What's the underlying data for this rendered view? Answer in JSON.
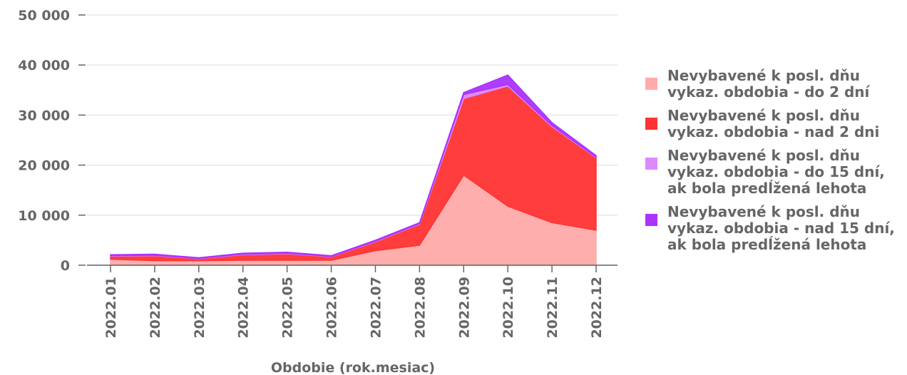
{
  "chart_data": {
    "type": "stacked-area",
    "x_label": "Obdobie (rok.mesiac)",
    "categories": [
      "2022.01",
      "2022.02",
      "2022.03",
      "2022.04",
      "2022.05",
      "2022.06",
      "2022.07",
      "2022.08",
      "2022.09",
      "2022.10",
      "2022.11",
      "2022.12"
    ],
    "series": [
      {
        "name": "Nevybavené k posl. dňu vykaz. obdobia - do 2 dní",
        "color": "#ffaaaa",
        "values": [
          1200,
          900,
          900,
          1000,
          1000,
          1000,
          2900,
          4000,
          18000,
          11800,
          8500,
          7000
        ]
      },
      {
        "name": "Nevybavené k posl. dňu vykaz. obdobia - nad 2 dni",
        "color": "#ff3333",
        "values": [
          600,
          1000,
          400,
          1100,
          1300,
          700,
          1800,
          4200,
          15300,
          24000,
          19200,
          14500
        ]
      },
      {
        "name": "Nevybavené k posl. dňu vykaz. obdobia - do 15 dní, ak bola predĺžená lehota",
        "color": "#dd88ff",
        "values": [
          100,
          100,
          50,
          100,
          100,
          50,
          100,
          100,
          800,
          300,
          200,
          100
        ]
      },
      {
        "name": "Nevybavené k posl. dňu vykaz. obdobia - nad 15 dní, ak bola predĺžená lehota",
        "color": "#aa33ff",
        "values": [
          200,
          200,
          150,
          200,
          200,
          150,
          200,
          200,
          400,
          1900,
          600,
          300
        ]
      }
    ],
    "ylim": [
      0,
      50000
    ],
    "yticks": [
      {
        "value": 0,
        "label": "0"
      },
      {
        "value": 10000,
        "label": "10 000"
      },
      {
        "value": 20000,
        "label": "20 000"
      },
      {
        "value": 30000,
        "label": "30 000"
      },
      {
        "value": 40000,
        "label": "40 000"
      },
      {
        "value": 50000,
        "label": "50 000"
      }
    ],
    "grid": true
  }
}
